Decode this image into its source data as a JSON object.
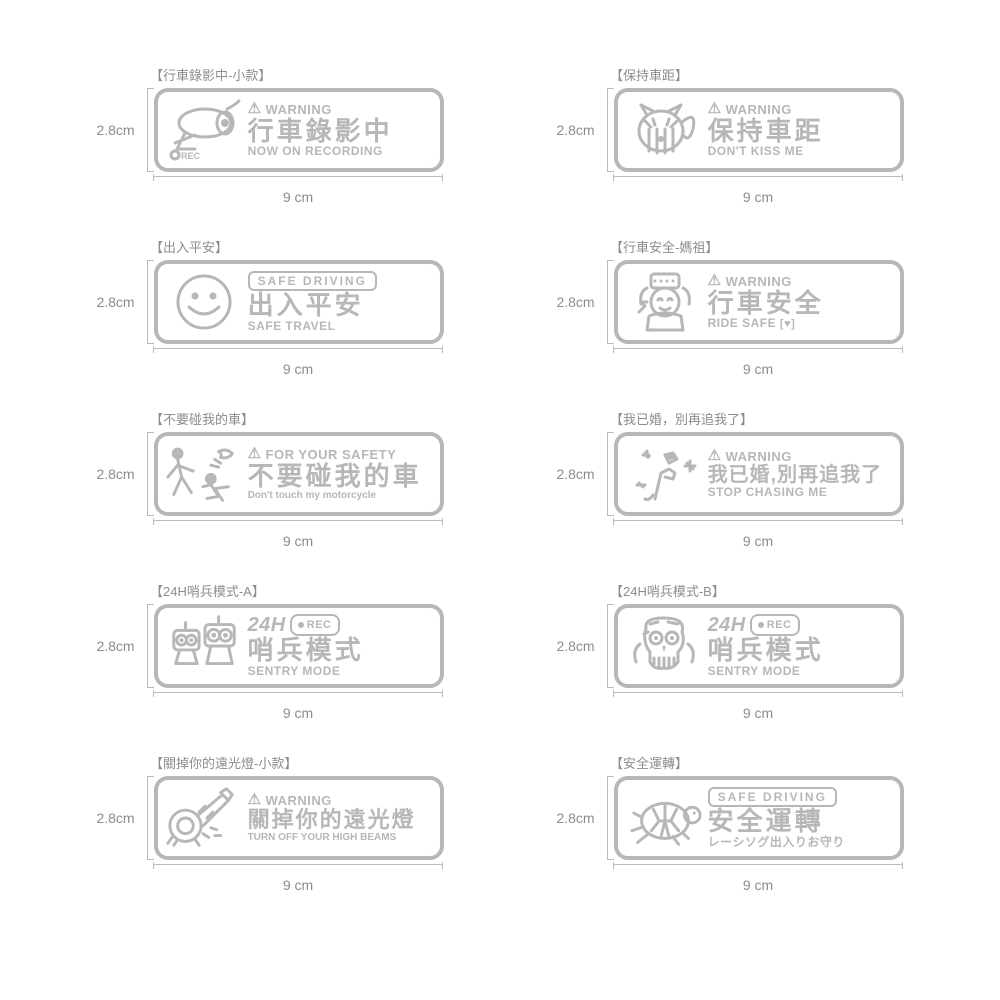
{
  "dimensions": {
    "width_label": "9 cm",
    "height_label": "2.8cm"
  },
  "sticker_style": {
    "width_cm": 9,
    "height_cm": 2.8,
    "color_hex": "#b7b7b7",
    "border_radius_px": 14,
    "border_width_px": 4,
    "background_hex": "#ffffff"
  },
  "layout": {
    "columns": 2,
    "rows": 5
  },
  "stickers": [
    {
      "id": "rec-small",
      "title": "【行車錄影中-小款】",
      "icon": "camera",
      "rec_sublabel": "REC",
      "line1_prefix": "⚠",
      "line1": "WARNING",
      "line2": "行車錄影中",
      "line3": "NOW ON RECORDING"
    },
    {
      "id": "keep-distance",
      "title": "【保持車距】",
      "icon": "cat-butt",
      "line1_prefix": "⚠",
      "line1": "WARNING",
      "line2": "保持車距",
      "line3": "DON'T KISS ME"
    },
    {
      "id": "safe-travel",
      "title": "【出入平安】",
      "icon": "smiley",
      "line1_box": "SAFE DRIVING",
      "line2": "出入平安",
      "line3": "SAFE TRAVEL"
    },
    {
      "id": "ride-safe-mazu",
      "title": "【行車安全-媽祖】",
      "icon": "mazu",
      "line1_prefix": "⚠",
      "line1": "WARNING",
      "line2": "行車安全",
      "line3": "RIDE SAFE",
      "line3_suffix": "♥"
    },
    {
      "id": "dont-touch",
      "title": "【不要碰我的車】",
      "icon": "kick",
      "line1_prefix": "⚠",
      "line1": "FOR YOUR SAFETY",
      "line2": "不要碰我的車",
      "line3": "Don't touch my motorcycle"
    },
    {
      "id": "married",
      "title": "【我已婚，別再追我了】",
      "icon": "ring",
      "line1_prefix": "⚠",
      "line1": "WARNING",
      "line2": "我已婚,別再追我了",
      "line3": "STOP CHASING ME"
    },
    {
      "id": "sentry-a",
      "title": "【24H哨兵模式-A】",
      "icon": "robot",
      "line1_24h": "24H",
      "line1_pill": "REC",
      "line2": "哨兵模式",
      "line3": "SENTRY MODE"
    },
    {
      "id": "sentry-b",
      "title": "【24H哨兵模式-B】",
      "icon": "skull",
      "line1_24h": "24H",
      "line1_pill": "REC",
      "line2": "哨兵模式",
      "line3": "SENTRY MODE"
    },
    {
      "id": "high-beam",
      "title": "【關掉你的遠光燈-小款】",
      "icon": "high-beam",
      "line1_prefix": "⚠",
      "line1": "WARNING",
      "line2": "關掉你的遠光燈",
      "line3": "TURN OFF YOUR HIGH BEAMS"
    },
    {
      "id": "safe-turtle",
      "title": "【安全運轉】",
      "icon": "turtle",
      "line1_box": "SAFE DRIVING",
      "line2": "安全運轉",
      "line3": "レーシソグ出入りお守り"
    }
  ]
}
